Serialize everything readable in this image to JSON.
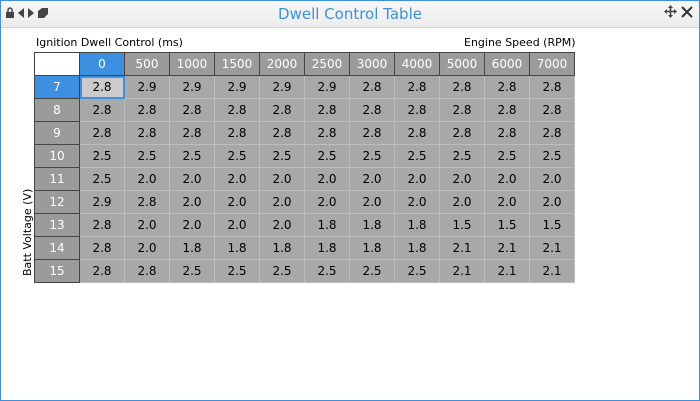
{
  "window": {
    "title": "Dwell Control Table",
    "accent_color": "#3d8fe0",
    "left_icons": [
      "lock-icon",
      "arrow-left-icon",
      "arrow-right-icon",
      "tag-icon"
    ],
    "right_icons": [
      "move-icon",
      "close-icon"
    ]
  },
  "labels": {
    "table_title": "Ignition Dwell Control (ms)",
    "x_axis": "Engine Speed (RPM)",
    "y_axis": "Batt Voltage (V)"
  },
  "table": {
    "columns": [
      "0",
      "500",
      "1000",
      "1500",
      "2000",
      "2500",
      "3000",
      "4000",
      "5000",
      "6000",
      "7000"
    ],
    "selected_column": "0",
    "selected_row": "7",
    "rows": [
      {
        "label": "7",
        "values": [
          "2.8",
          "2.9",
          "2.9",
          "2.9",
          "2.9",
          "2.9",
          "2.8",
          "2.8",
          "2.8",
          "2.8",
          "2.8"
        ]
      },
      {
        "label": "8",
        "values": [
          "2.8",
          "2.8",
          "2.8",
          "2.8",
          "2.8",
          "2.8",
          "2.8",
          "2.8",
          "2.8",
          "2.8",
          "2.8"
        ]
      },
      {
        "label": "9",
        "values": [
          "2.8",
          "2.8",
          "2.8",
          "2.8",
          "2.8",
          "2.8",
          "2.8",
          "2.8",
          "2.8",
          "2.8",
          "2.8"
        ]
      },
      {
        "label": "10",
        "values": [
          "2.5",
          "2.5",
          "2.5",
          "2.5",
          "2.5",
          "2.5",
          "2.5",
          "2.5",
          "2.5",
          "2.5",
          "2.5"
        ]
      },
      {
        "label": "11",
        "values": [
          "2.5",
          "2.0",
          "2.0",
          "2.0",
          "2.0",
          "2.0",
          "2.0",
          "2.0",
          "2.0",
          "2.0",
          "2.0"
        ]
      },
      {
        "label": "12",
        "values": [
          "2.9",
          "2.8",
          "2.0",
          "2.0",
          "2.0",
          "2.0",
          "2.0",
          "2.0",
          "2.0",
          "2.0",
          "2.0"
        ]
      },
      {
        "label": "13",
        "values": [
          "2.8",
          "2.0",
          "2.0",
          "2.0",
          "2.0",
          "1.8",
          "1.8",
          "1.8",
          "1.5",
          "1.5",
          "1.5"
        ]
      },
      {
        "label": "14",
        "values": [
          "2.8",
          "2.0",
          "1.8",
          "1.8",
          "1.8",
          "1.8",
          "1.8",
          "1.8",
          "2.1",
          "2.1",
          "2.1"
        ]
      },
      {
        "label": "15",
        "values": [
          "2.8",
          "2.8",
          "2.5",
          "2.5",
          "2.5",
          "2.5",
          "2.5",
          "2.5",
          "2.1",
          "2.1",
          "2.1"
        ]
      }
    ]
  }
}
